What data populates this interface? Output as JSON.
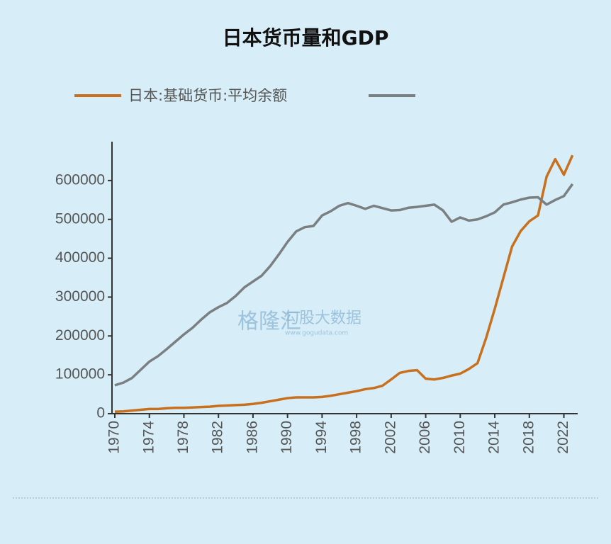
{
  "chart_data": {
    "type": "line",
    "title": "日本货币量和GDP",
    "x": [
      1970,
      1971,
      1972,
      1973,
      1974,
      1975,
      1976,
      1977,
      1978,
      1979,
      1980,
      1981,
      1982,
      1983,
      1984,
      1985,
      1986,
      1987,
      1988,
      1989,
      1990,
      1991,
      1992,
      1993,
      1994,
      1995,
      1996,
      1997,
      1998,
      1999,
      2000,
      2001,
      2002,
      2003,
      2004,
      2005,
      2006,
      2007,
      2008,
      2009,
      2010,
      2011,
      2012,
      2013,
      2014,
      2015,
      2016,
      2017,
      2018,
      2019,
      2020,
      2021,
      2022,
      2023
    ],
    "series": [
      {
        "name": "日本:基础货币:平均余额",
        "color": "#c8701e",
        "values": [
          5000,
          6000,
          8000,
          10000,
          12000,
          12000,
          14000,
          15000,
          15000,
          16000,
          17000,
          18000,
          20000,
          21000,
          22000,
          23000,
          25000,
          28000,
          32000,
          36000,
          40000,
          42000,
          42000,
          42000,
          43000,
          46000,
          50000,
          54000,
          58000,
          63000,
          66000,
          72000,
          88000,
          105000,
          110000,
          112000,
          90000,
          88000,
          92000,
          98000,
          103000,
          115000,
          130000,
          195000,
          270000,
          350000,
          430000,
          470000,
          495000,
          510000,
          610000,
          655000,
          615000,
          665000
        ]
      },
      {
        "name": null,
        "color": "#7b7f82",
        "values": [
          73000,
          80000,
          92000,
          113000,
          134000,
          148000,
          166000,
          185000,
          204000,
          221000,
          242000,
          261000,
          274000,
          285000,
          303000,
          325000,
          340000,
          355000,
          380000,
          410000,
          442000,
          469000,
          480000,
          483000,
          510000,
          521000,
          535000,
          542000,
          535000,
          527000,
          535000,
          529000,
          523000,
          524000,
          530000,
          532000,
          535000,
          538000,
          523000,
          494000,
          505000,
          497000,
          500000,
          508000,
          518000,
          538000,
          544000,
          551000,
          556000,
          557000,
          538000,
          550000,
          560000,
          591000
        ]
      }
    ],
    "xlim": [
      1970,
      2023.6
    ],
    "xticks": [
      1970,
      1974,
      1978,
      1982,
      1986,
      1990,
      1994,
      1998,
      2002,
      2006,
      2010,
      2014,
      2018,
      2022
    ],
    "ylim": [
      0,
      700000
    ],
    "yticks": [
      0,
      100000,
      200000,
      300000,
      400000,
      500000,
      600000
    ],
    "watermarks": [
      "格隆汇",
      "勾股大数据",
      "www.gogudata.com"
    ]
  }
}
